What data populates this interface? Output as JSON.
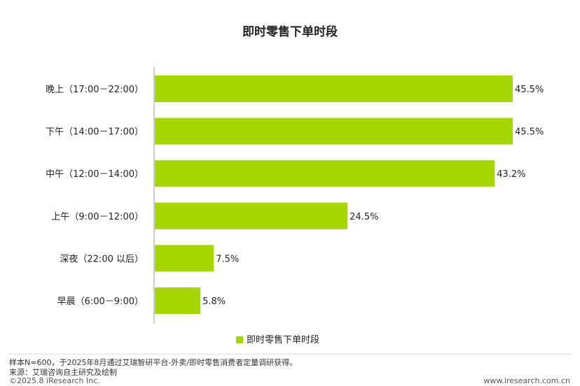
{
  "chart_data": {
    "type": "bar",
    "orientation": "horizontal",
    "title": "即时零售下单时段",
    "categories": [
      "晚上（17:00－22:00）",
      "下午（14:00－17:00）",
      "中午（12:00－14:00）",
      "上午（9:00－12:00）",
      "深夜（22:00 以后）",
      "早晨（6:00－9:00）"
    ],
    "series": [
      {
        "name": "即时零售下单时段",
        "values": [
          45.5,
          45.5,
          43.2,
          24.5,
          7.5,
          5.8
        ],
        "labels": [
          "45.5%",
          "45.5%",
          "43.2%",
          "24.5%",
          "7.5%",
          "5.8%"
        ]
      }
    ],
    "xlim": [
      0,
      50
    ],
    "unit": "%",
    "grid": false,
    "legend": "bottom-center",
    "bar_color": "#a5d600"
  },
  "footer": {
    "note": "样本N=600，于2025年8月通过艾瑞智研平台-外卖/即时零售消费者定量调研获得。",
    "source": "来源：艾瑞咨询自主研究及绘制",
    "copyright": "©2025.8 iResearch Inc.",
    "website": "www.iresearch.com.cn"
  }
}
